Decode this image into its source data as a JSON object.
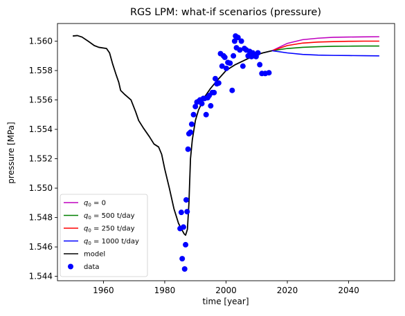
{
  "chart_data": {
    "type": "line",
    "title": "RGS LPM: what-if scenarios (pressure)",
    "xlabel": "time [year]",
    "ylabel": "pressure [MPa]",
    "xlim": [
      1945.0,
      2055.0
    ],
    "ylim": [
      1.5437,
      1.5612
    ],
    "xticks": [
      1960,
      1980,
      2000,
      2020,
      2040
    ],
    "xtick_labels": [
      "1960",
      "1980",
      "2000",
      "2020",
      "2040"
    ],
    "yticks": [
      1.544,
      1.546,
      1.548,
      1.55,
      1.552,
      1.554,
      1.556,
      1.558,
      1.56
    ],
    "ytick_labels": [
      "1.544",
      "1.546",
      "1.548",
      "1.550",
      "1.552",
      "1.554",
      "1.556",
      "1.558",
      "1.560"
    ],
    "grid": false,
    "legend_position": "lower-left",
    "legend": [
      {
        "id": "q0-0",
        "sub": "0",
        "label_pre": "q",
        "label_post": " = 0",
        "color": "#bf00bf",
        "kind": "line"
      },
      {
        "id": "q500",
        "sub": "0",
        "label_pre": "q",
        "label_post": " = 500 t/day",
        "color": "#008000",
        "kind": "line"
      },
      {
        "id": "q250",
        "sub": "0",
        "label_pre": "q",
        "label_post": " = 250 t/day",
        "color": "#ff0000",
        "kind": "line"
      },
      {
        "id": "q1000",
        "sub": "0",
        "label_pre": "q",
        "label_post": " = 1000 t/day",
        "color": "#0000ff",
        "kind": "line"
      },
      {
        "id": "model",
        "sub": "",
        "label_pre": "model",
        "label_post": "",
        "color": "#000000",
        "kind": "line"
      },
      {
        "id": "data",
        "sub": "",
        "label_pre": "data",
        "label_post": "",
        "color": "#0000ff",
        "kind": "marker"
      }
    ],
    "model": [
      [
        1950.0,
        1.56035
      ],
      [
        1951.5,
        1.56038
      ],
      [
        1953.0,
        1.56028
      ],
      [
        1955.0,
        1.56
      ],
      [
        1957.0,
        1.5597
      ],
      [
        1958.5,
        1.55958
      ],
      [
        1961.0,
        1.5595
      ],
      [
        1962.0,
        1.5592
      ],
      [
        1963.0,
        1.55845
      ],
      [
        1964.0,
        1.5578
      ],
      [
        1965.0,
        1.5572
      ],
      [
        1965.6,
        1.55665
      ],
      [
        1966.8,
        1.5564
      ],
      [
        1969.0,
        1.556
      ],
      [
        1970.5,
        1.5552
      ],
      [
        1971.5,
        1.5546
      ],
      [
        1973.0,
        1.5541
      ],
      [
        1975.0,
        1.5535
      ],
      [
        1976.5,
        1.553
      ],
      [
        1978.0,
        1.5528
      ],
      [
        1979.0,
        1.5523
      ],
      [
        1980.0,
        1.5513
      ],
      [
        1981.5,
        1.55
      ],
      [
        1983.0,
        1.5486
      ],
      [
        1984.5,
        1.5476
      ],
      [
        1985.5,
        1.5472
      ],
      [
        1986.3,
        1.5469
      ],
      [
        1986.8,
        1.5468
      ],
      [
        1987.4,
        1.5472
      ],
      [
        1987.9,
        1.549
      ],
      [
        1988.4,
        1.552
      ],
      [
        1989.0,
        1.5533
      ],
      [
        1990.0,
        1.5546
      ],
      [
        1991.0,
        1.5553
      ],
      [
        1993.0,
        1.5562
      ],
      [
        1995.0,
        1.5568
      ],
      [
        1997.0,
        1.5573
      ],
      [
        2000.0,
        1.558
      ],
      [
        2003.0,
        1.5584
      ],
      [
        2006.0,
        1.5587
      ],
      [
        2009.0,
        1.559
      ],
      [
        2012.0,
        1.5592
      ],
      [
        2015.0,
        1.55935
      ]
    ],
    "series": [
      {
        "id": "q0-0",
        "color": "#bf00bf",
        "x": [
          2015,
          2020,
          2025,
          2030,
          2035,
          2040,
          2045,
          2050
        ],
        "values": [
          1.55935,
          1.55985,
          1.5601,
          1.5602,
          1.56026,
          1.56028,
          1.56029,
          1.5603
        ]
      },
      {
        "id": "q500",
        "color": "#008000",
        "x": [
          2015,
          2020,
          2025,
          2030,
          2035,
          2040,
          2045,
          2050
        ],
        "values": [
          1.55935,
          1.5595,
          1.55958,
          1.55962,
          1.55965,
          1.55966,
          1.55967,
          1.55967
        ]
      },
      {
        "id": "q250",
        "color": "#ff0000",
        "x": [
          2015,
          2020,
          2025,
          2030,
          2035,
          2040,
          2045,
          2050
        ],
        "values": [
          1.55935,
          1.5597,
          1.55987,
          1.55994,
          1.55997,
          1.55999,
          1.56,
          1.56
        ]
      },
      {
        "id": "q1000",
        "color": "#0000ff",
        "x": [
          2015,
          2020,
          2025,
          2030,
          2035,
          2040,
          2045,
          2050
        ],
        "values": [
          1.55935,
          1.5592,
          1.5591,
          1.55905,
          1.55903,
          1.55902,
          1.55901,
          1.559
        ]
      }
    ],
    "data_points": [
      [
        1985.0,
        1.54725
      ],
      [
        1985.4,
        1.54835
      ],
      [
        1985.7,
        1.5452
      ],
      [
        1986.1,
        1.54735
      ],
      [
        1986.5,
        1.5445
      ],
      [
        1986.8,
        1.54615
      ],
      [
        1987.0,
        1.5492
      ],
      [
        1987.3,
        1.5484
      ],
      [
        1987.6,
        1.55265
      ],
      [
        1987.9,
        1.5537
      ],
      [
        1988.4,
        1.5538
      ],
      [
        1988.8,
        1.55435
      ],
      [
        1989.4,
        1.555
      ],
      [
        1990.0,
        1.55555
      ],
      [
        1990.5,
        1.55585
      ],
      [
        1991.0,
        1.5559
      ],
      [
        1991.5,
        1.556
      ],
      [
        1992.1,
        1.55575
      ],
      [
        1992.6,
        1.5561
      ],
      [
        1993.0,
        1.5561
      ],
      [
        1993.5,
        1.555
      ],
      [
        1994.0,
        1.55615
      ],
      [
        1994.5,
        1.5563
      ],
      [
        1995.0,
        1.5556
      ],
      [
        1995.5,
        1.5565
      ],
      [
        1996.1,
        1.5565
      ],
      [
        1996.5,
        1.55745
      ],
      [
        1997.0,
        1.5571
      ],
      [
        1997.6,
        1.55715
      ],
      [
        1998.2,
        1.55915
      ],
      [
        1998.7,
        1.5583
      ],
      [
        1999.2,
        1.559
      ],
      [
        1999.6,
        1.5589
      ],
      [
        2000.1,
        1.55815
      ],
      [
        2000.6,
        1.55855
      ],
      [
        2001.3,
        1.5585
      ],
      [
        2002.0,
        1.55665
      ],
      [
        2002.4,
        1.559
      ],
      [
        2002.8,
        1.56
      ],
      [
        2003.1,
        1.56035
      ],
      [
        2003.4,
        1.55955
      ],
      [
        2003.9,
        1.56025
      ],
      [
        2004.5,
        1.5594
      ],
      [
        2005.0,
        1.56
      ],
      [
        2005.5,
        1.5583
      ],
      [
        2006.0,
        1.5595
      ],
      [
        2006.6,
        1.5594
      ],
      [
        2007.2,
        1.559
      ],
      [
        2007.7,
        1.5593
      ],
      [
        2008.3,
        1.55895
      ],
      [
        2008.7,
        1.5592
      ],
      [
        2009.3,
        1.559
      ],
      [
        2009.8,
        1.55895
      ],
      [
        2010.4,
        1.5592
      ],
      [
        2011.0,
        1.5584
      ],
      [
        2011.7,
        1.5578
      ],
      [
        2012.8,
        1.5578
      ],
      [
        2014.0,
        1.55785
      ]
    ]
  }
}
